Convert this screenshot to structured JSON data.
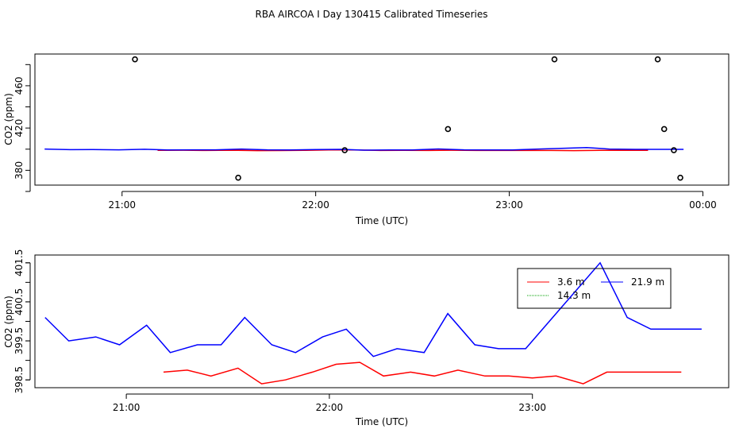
{
  "chart_data": [
    {
      "type": "scatter",
      "title": "RBA AIRCOA I  Day 130415  Calibrated Timeseries",
      "xlabel": "Time (UTC)",
      "ylabel": "CO2 (ppm)",
      "xlim": [
        "20:33",
        "00:08"
      ],
      "ylim": [
        366,
        490
      ],
      "x_ticks": [
        "21:00",
        "22:00",
        "23:00",
        "00:00"
      ],
      "y_ticks": [
        380,
        420,
        460
      ],
      "points": [
        {
          "x": "21:04",
          "y": 485
        },
        {
          "x": "21:36",
          "y": 373
        },
        {
          "x": "22:09",
          "y": 399
        },
        {
          "x": "22:41",
          "y": 419
        },
        {
          "x": "23:14",
          "y": 485
        },
        {
          "x": "23:46",
          "y": 485
        },
        {
          "x": "23:48",
          "y": 419
        },
        {
          "x": "23:51",
          "y": 399
        },
        {
          "x": "23:53",
          "y": 373
        }
      ],
      "series": [
        {
          "color": "#ff0000",
          "x": [
            "21:11",
            "21:19",
            "21:26",
            "21:34",
            "21:42",
            "21:49",
            "21:57",
            "22:04",
            "22:12",
            "22:20",
            "22:27",
            "22:35",
            "22:42",
            "22:50",
            "22:58",
            "23:05",
            "23:13",
            "23:20",
            "23:28",
            "23:36",
            "23:43"
          ],
          "values": [
            398.9,
            399.0,
            398.8,
            399.0,
            398.6,
            398.7,
            398.9,
            399.2,
            399.3,
            398.8,
            398.9,
            398.8,
            399.0,
            398.8,
            398.8,
            398.8,
            398.8,
            398.6,
            398.9,
            398.9,
            398.9
          ]
        },
        {
          "color": "#0000ff",
          "x": [
            "20:36",
            "20:44",
            "20:51",
            "20:59",
            "21:07",
            "21:14",
            "21:22",
            "21:29",
            "21:37",
            "21:45",
            "21:52",
            "22:00",
            "22:08",
            "22:15",
            "22:23",
            "22:30",
            "22:38",
            "22:46",
            "22:53",
            "23:01",
            "23:08",
            "23:16",
            "23:24",
            "23:31",
            "23:39",
            "23:46",
            "23:54"
          ],
          "values": [
            400.1,
            399.5,
            399.6,
            399.4,
            399.9,
            399.2,
            399.4,
            399.4,
            400.1,
            399.4,
            399.2,
            399.7,
            399.8,
            399.1,
            399.3,
            399.2,
            400.2,
            399.4,
            399.3,
            399.3,
            400.0,
            400.8,
            401.5,
            400.1,
            399.8,
            399.8,
            399.8
          ]
        }
      ]
    },
    {
      "type": "line",
      "xlabel": "Time (UTC)",
      "ylabel": "CO2 (ppm)",
      "xlim": [
        "20:33",
        "23:58"
      ],
      "ylim": [
        398.3,
        401.7
      ],
      "x_ticks": [
        "21:00",
        "22:00",
        "23:00"
      ],
      "y_ticks": [
        "398.5",
        "399.5",
        "400.5",
        "401.5"
      ],
      "legend": {
        "placement": "top-right",
        "entries": [
          {
            "label": "3.6 m",
            "color": "#ff0000"
          },
          {
            "label": "21.9 m",
            "color": "#0000ff"
          },
          {
            "label": "14.3 m",
            "color": "#00a000"
          }
        ]
      },
      "series": [
        {
          "name": "3.6 m",
          "color": "#ff0000",
          "x": [
            "21:11",
            "21:18",
            "21:25",
            "21:33",
            "21:40",
            "21:47",
            "21:55",
            "22:02",
            "22:09",
            "22:16",
            "22:24",
            "22:31",
            "22:38",
            "22:46",
            "22:53",
            "23:00",
            "23:07",
            "23:15",
            "23:22",
            "23:29",
            "23:37",
            "23:44"
          ],
          "values": [
            398.7,
            398.75,
            398.6,
            398.8,
            398.4,
            398.5,
            398.7,
            398.9,
            398.95,
            398.6,
            398.7,
            398.6,
            398.75,
            398.6,
            398.6,
            398.55,
            398.6,
            398.4,
            398.7,
            398.7,
            398.7,
            398.7
          ]
        },
        {
          "name": "21.9 m",
          "color": "#0000ff",
          "x": [
            "20:36",
            "20:43",
            "20:51",
            "20:58",
            "21:06",
            "21:13",
            "21:21",
            "21:28",
            "21:35",
            "21:43",
            "21:50",
            "21:58",
            "22:05",
            "22:13",
            "22:20",
            "22:28",
            "22:35",
            "22:43",
            "22:50",
            "22:58",
            "23:05",
            "23:13",
            "23:20",
            "23:28",
            "23:35",
            "23:43",
            "23:50"
          ],
          "values": [
            400.1,
            399.5,
            399.6,
            399.4,
            399.9,
            399.2,
            399.4,
            399.4,
            400.1,
            399.4,
            399.2,
            399.6,
            399.8,
            399.1,
            399.3,
            399.2,
            400.2,
            399.4,
            399.3,
            399.3,
            400.0,
            400.8,
            401.5,
            400.1,
            399.8,
            399.8,
            399.8
          ]
        }
      ]
    }
  ]
}
